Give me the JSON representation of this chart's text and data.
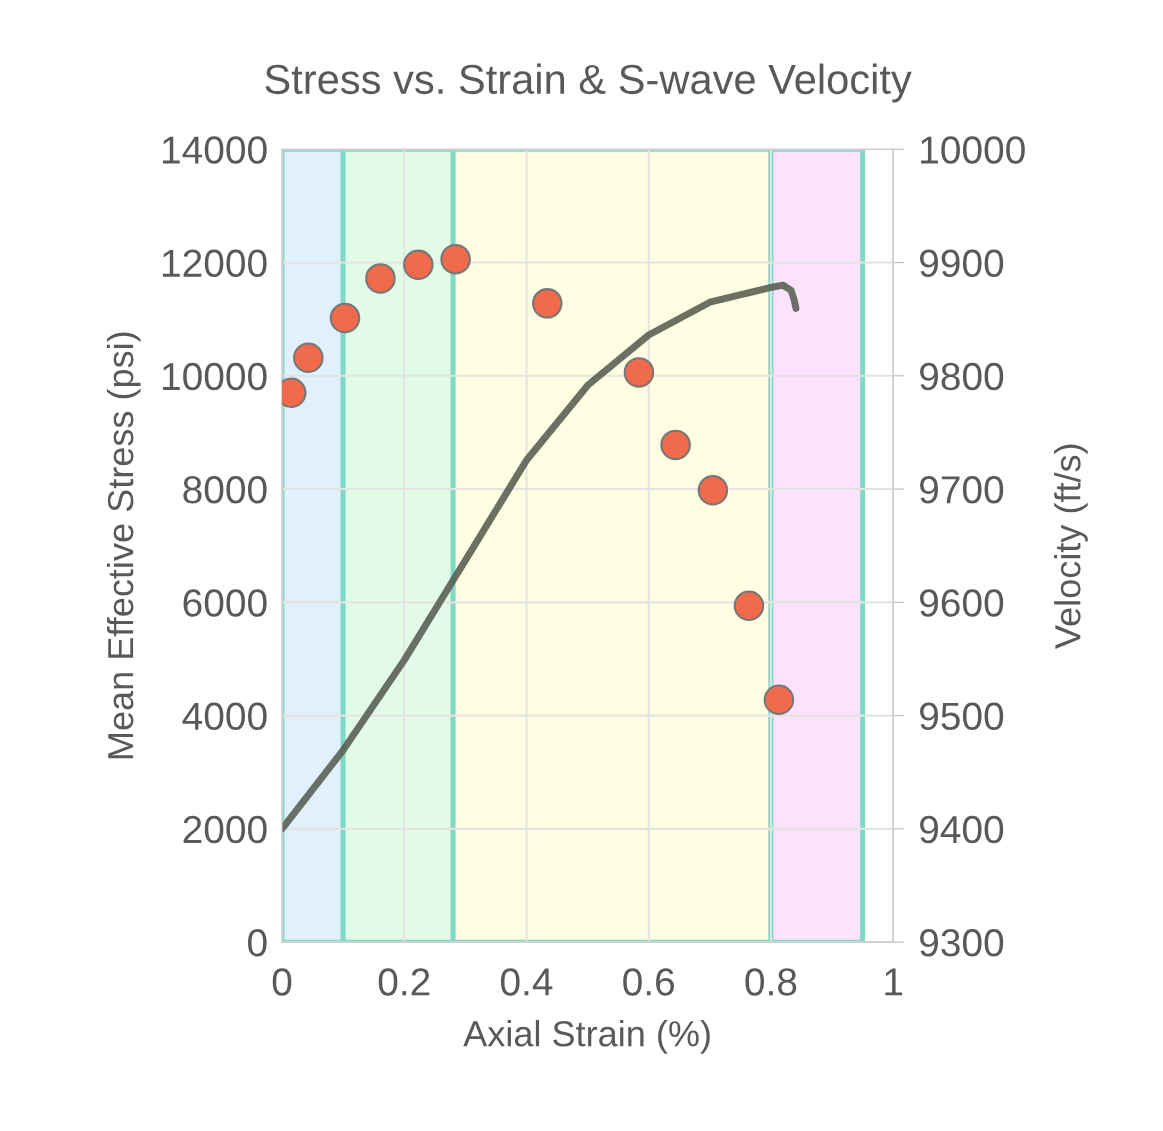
{
  "chart_data": {
    "type": "scatter",
    "title": "Stress vs. Strain & S-wave Velocity",
    "xlabel": "Axial Strain (%)",
    "ylabel": "Mean Effective Stress (psi)",
    "y2label": "Velocity (ft/s)",
    "xlim": [
      0,
      1
    ],
    "xticks": [
      0,
      0.2,
      0.4,
      0.6,
      0.8,
      1
    ],
    "ylim": [
      0,
      14000
    ],
    "yticks": [
      0,
      2000,
      4000,
      6000,
      8000,
      10000,
      12000,
      14000
    ],
    "y2lim": [
      9300,
      10000
    ],
    "y2ticks": [
      9300,
      9400,
      9500,
      9600,
      9700,
      9800,
      9900,
      10000
    ],
    "grid": true,
    "marker": "circle",
    "bands": [
      {
        "axis": "x",
        "from": 0,
        "to": 0.1,
        "color": "#e0f0fd"
      },
      {
        "axis": "x",
        "from": 0.1,
        "to": 0.28,
        "color": "#e2fbe6"
      },
      {
        "axis": "x",
        "from": 0.28,
        "to": 0.8,
        "color": "#fefee2"
      },
      {
        "axis": "x",
        "from": 0.8,
        "to": 0.95,
        "color": "#fce2fc"
      }
    ],
    "series": [
      {
        "type": "line",
        "axis": "y",
        "color": "#5b6055",
        "marker": "none",
        "line_style": "solid",
        "x": [
          0,
          0.1,
          0.2,
          0.28,
          0.3,
          0.4,
          0.5,
          0.6,
          0.7,
          0.8,
          0.82,
          0.833,
          0.838,
          0.841
        ],
        "values": [
          2000,
          3390,
          4980,
          6390,
          6740,
          8510,
          9830,
          10720,
          11300,
          11560,
          11600,
          11510,
          11340,
          11190
        ]
      },
      {
        "axis": "y2",
        "color": "#f06a4c",
        "x": [
          0.015,
          0.043,
          0.103,
          0.161,
          0.223,
          0.284,
          0.434,
          0.584,
          0.644,
          0.705,
          0.764,
          0.813
        ],
        "values": [
          9785,
          9816,
          9851,
          9886,
          9898,
          9903,
          9864,
          9803,
          9739,
          9699,
          9597,
          9514
        ]
      }
    ]
  }
}
